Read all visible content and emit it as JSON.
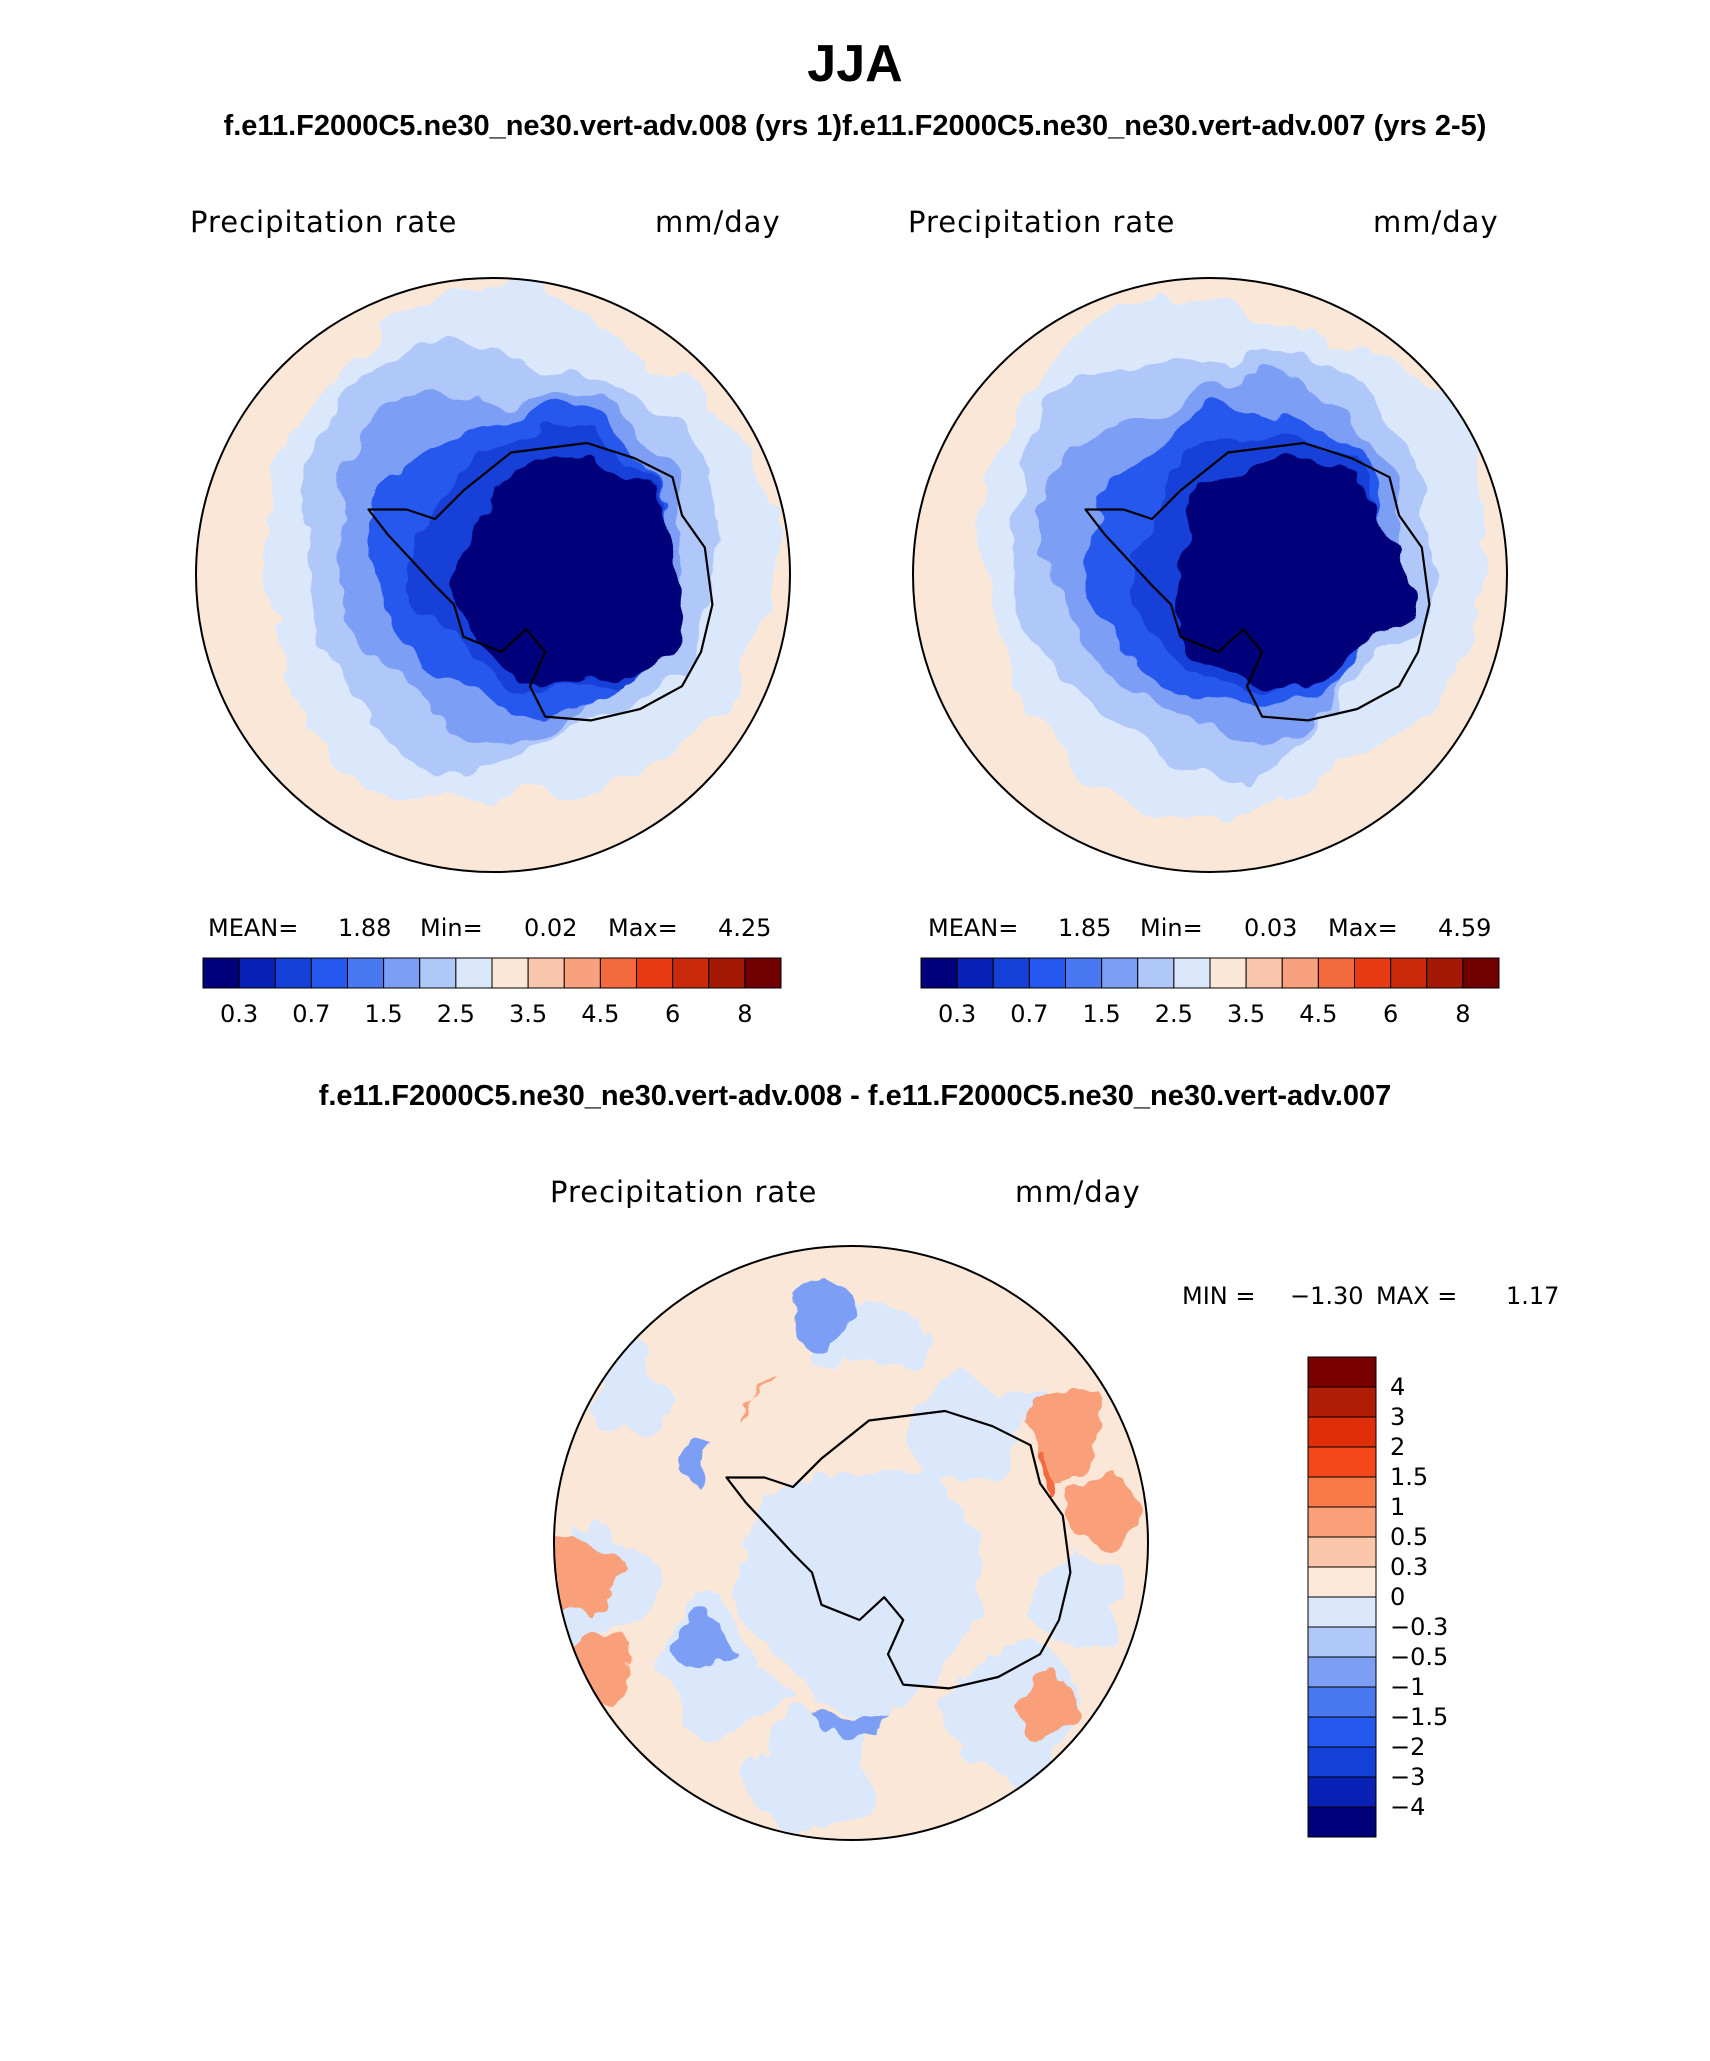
{
  "title": "JJA",
  "subtitle": "f.e11.F2000C5.ne30_ne30.vert-adv.008 (yrs 1)f.e11.F2000C5.ne30_ne30.vert-adv.007 (yrs 2-5)",
  "diff_subtitle": "f.e11.F2000C5.ne30_ne30.vert-adv.008 - f.e11.F2000C5.ne30_ne30.vert-adv.007",
  "chart_data": [
    {
      "type": "heatmap",
      "projection": "south-polar-stereographic",
      "title": "Precipitation rate",
      "units": "mm/day",
      "region": "Antarctica / Southern Ocean",
      "stats": {
        "mean_label": "MEAN=",
        "mean": "1.88",
        "min_label": "Min=",
        "min": "0.02",
        "max_label": "Max=",
        "max": "4.25"
      },
      "colorbar_levels": [
        "0.3",
        "0.7",
        "1.5",
        "2.5",
        "3.5",
        "4.5",
        "6",
        "8"
      ],
      "colorbar_colors": [
        "#00007a",
        "#0a21b6",
        "#1440d8",
        "#2558ee",
        "#4a78f0",
        "#7d9ef5",
        "#b0c7f9",
        "#dbe8fc",
        "#fbe7d7",
        "#f9c6ad",
        "#f7a17f",
        "#f46a3f",
        "#e83a14",
        "#c92a0a",
        "#a61806",
        "#700000"
      ],
      "fields": {
        "interior": "#00007a",
        "coast": "#1440d8",
        "mid": "#7d9ef5",
        "outer": "#dbe8fc",
        "rim": "#fbe7d7"
      }
    },
    {
      "type": "heatmap",
      "projection": "south-polar-stereographic",
      "title": "Precipitation rate",
      "units": "mm/day",
      "region": "Antarctica / Southern Ocean",
      "stats": {
        "mean_label": "MEAN=",
        "mean": "1.85",
        "min_label": "Min=",
        "min": "0.03",
        "max_label": "Max=",
        "max": "4.59"
      },
      "colorbar_levels": [
        "0.3",
        "0.7",
        "1.5",
        "2.5",
        "3.5",
        "4.5",
        "6",
        "8"
      ],
      "colorbar_colors": [
        "#00007a",
        "#0a21b6",
        "#1440d8",
        "#2558ee",
        "#4a78f0",
        "#7d9ef5",
        "#b0c7f9",
        "#dbe8fc",
        "#fbe7d7",
        "#f9c6ad",
        "#f7a17f",
        "#f46a3f",
        "#e83a14",
        "#c92a0a",
        "#a61806",
        "#700000"
      ],
      "fields": {
        "interior": "#00007a",
        "coast": "#1440d8",
        "mid": "#7d9ef5",
        "outer": "#dbe8fc",
        "rim": "#fbe7d7"
      }
    },
    {
      "type": "heatmap",
      "projection": "south-polar-stereographic",
      "title": "Precipitation rate",
      "units": "mm/day",
      "region": "Antarctica / Southern Ocean (difference)",
      "stats": {
        "min_label": "MIN =",
        "min": "−1.30",
        "max_label": "MAX =",
        "max": "1.17"
      },
      "colorbar_levels": [
        "4",
        "3",
        "2",
        "1.5",
        "1",
        "0.5",
        "0.3",
        "0",
        "−0.3",
        "−0.5",
        "−1",
        "−1.5",
        "−2",
        "−3",
        "−4"
      ],
      "colorbar_colors": [
        "#7a0000",
        "#b01d06",
        "#e02e0a",
        "#f4471a",
        "#f77a48",
        "#f9a07a",
        "#fbc7aa",
        "#fbe8d8",
        "#dbe8fc",
        "#b0c7f9",
        "#7d9ef5",
        "#4a78f0",
        "#2558ee",
        "#1440d8",
        "#0a21b6",
        "#00007a"
      ],
      "fields": {
        "interior": "#dbe8fc",
        "land_pos": "#fbe7d7",
        "ocean": "#fbe7d7",
        "pos_patch": "#f9a07a",
        "neg_patch": "#7d9ef5"
      }
    }
  ]
}
